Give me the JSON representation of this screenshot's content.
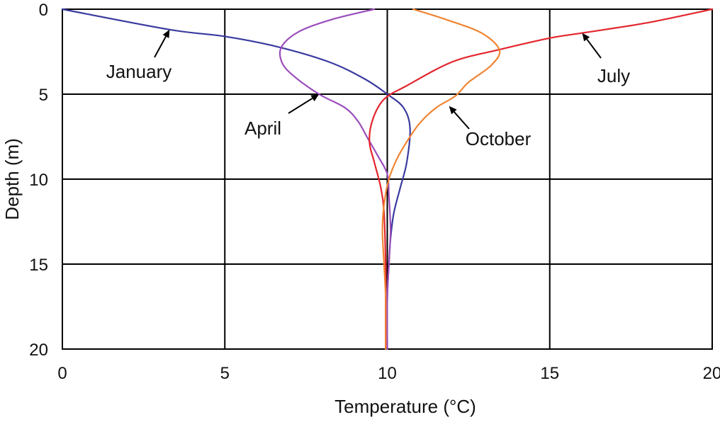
{
  "chart_data": {
    "type": "line",
    "title": "",
    "xlabel": "Temperature (°C)",
    "ylabel": "Depth (m)",
    "xlim": [
      0,
      20
    ],
    "ylim": [
      0,
      20
    ],
    "y_inverted": true,
    "grid": true,
    "x_ticks": [
      "0",
      "5",
      "10",
      "15",
      "20"
    ],
    "y_ticks": [
      "0",
      "5",
      "10",
      "15",
      "20"
    ],
    "colors": {
      "January": "#3a3aa0",
      "April": "#9b4dbb",
      "July": "#e3262e",
      "October": "#f08432"
    },
    "series": [
      {
        "name": "January",
        "points": [
          [
            0,
            0
          ],
          [
            3.3,
            1.2
          ],
          [
            5,
            1.6
          ],
          [
            6.6,
            2.2
          ],
          [
            8.2,
            3.1
          ],
          [
            9.3,
            4.1
          ],
          [
            10,
            5
          ],
          [
            10.5,
            5.8
          ],
          [
            10.7,
            7
          ],
          [
            10.6,
            9
          ],
          [
            10.4,
            10.5
          ],
          [
            10.2,
            12
          ],
          [
            10.1,
            13.5
          ],
          [
            10.05,
            15
          ],
          [
            10,
            17
          ],
          [
            10,
            20
          ]
        ]
      },
      {
        "name": "April",
        "points": [
          [
            9.6,
            0
          ],
          [
            8.3,
            0.6
          ],
          [
            7.3,
            1.3
          ],
          [
            6.75,
            2.2
          ],
          [
            6.75,
            3.1
          ],
          [
            7.1,
            3.9
          ],
          [
            7.9,
            5
          ],
          [
            8.7,
            5.8
          ],
          [
            9.1,
            6.6
          ],
          [
            9.4,
            7.6
          ],
          [
            9.7,
            8.6
          ],
          [
            10,
            9.7
          ],
          [
            10.05,
            11
          ],
          [
            10.1,
            13
          ],
          [
            10.05,
            15
          ],
          [
            10,
            17
          ],
          [
            10,
            20
          ]
        ]
      },
      {
        "name": "July",
        "points": [
          [
            20,
            0
          ],
          [
            18,
            0.8
          ],
          [
            16,
            1.4
          ],
          [
            15,
            1.7
          ],
          [
            13.4,
            2.4
          ],
          [
            12,
            3.1
          ],
          [
            10.6,
            4.5
          ],
          [
            9.9,
            5.3
          ],
          [
            9.55,
            6.5
          ],
          [
            9.45,
            7.8
          ],
          [
            9.6,
            9
          ],
          [
            9.8,
            10.5
          ],
          [
            9.9,
            12
          ],
          [
            9.95,
            15
          ],
          [
            9.95,
            17
          ],
          [
            9.95,
            20
          ]
        ]
      },
      {
        "name": "October",
        "points": [
          [
            10.8,
            0
          ],
          [
            11.8,
            0.6
          ],
          [
            12.9,
            1.4
          ],
          [
            13.45,
            2.4
          ],
          [
            13.2,
            3.3
          ],
          [
            12.5,
            4.3
          ],
          [
            12.1,
            5.1
          ],
          [
            11.5,
            5.8
          ],
          [
            11,
            6.7
          ],
          [
            10.6,
            7.8
          ],
          [
            10.3,
            8.8
          ],
          [
            10.05,
            10
          ],
          [
            9.9,
            11.5
          ],
          [
            9.85,
            13
          ],
          [
            9.9,
            15
          ],
          [
            9.95,
            17
          ],
          [
            9.95,
            20
          ]
        ]
      }
    ],
    "annotations": [
      {
        "text": "January",
        "target": [
          3.3,
          1.2
        ]
      },
      {
        "text": "April",
        "target": [
          7.9,
          5
        ]
      },
      {
        "text": "July",
        "target": [
          16,
          1.4
        ]
      },
      {
        "text": "October",
        "target": [
          11.9,
          5.7
        ]
      }
    ]
  }
}
